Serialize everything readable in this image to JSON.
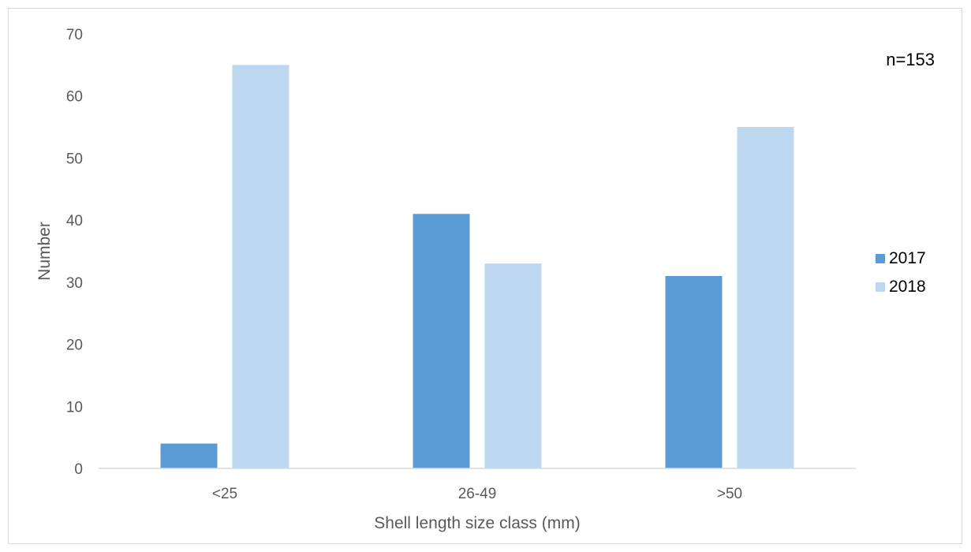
{
  "chart_data": {
    "type": "bar",
    "categories": [
      "<25",
      "26-49",
      ">50"
    ],
    "series": [
      {
        "name": "2017",
        "values": [
          4,
          41,
          31
        ],
        "color": "#5b9bd5"
      },
      {
        "name": "2018",
        "values": [
          65,
          33,
          55
        ],
        "color": "#bdd7ee"
      }
    ],
    "xlabel": "Shell length size class (mm)",
    "ylabel": "Number",
    "ylim": [
      0,
      70
    ],
    "yticks": [
      0,
      10,
      20,
      30,
      40,
      50,
      60,
      70
    ],
    "grid": false,
    "legend": "right",
    "annotation": "n=153"
  }
}
